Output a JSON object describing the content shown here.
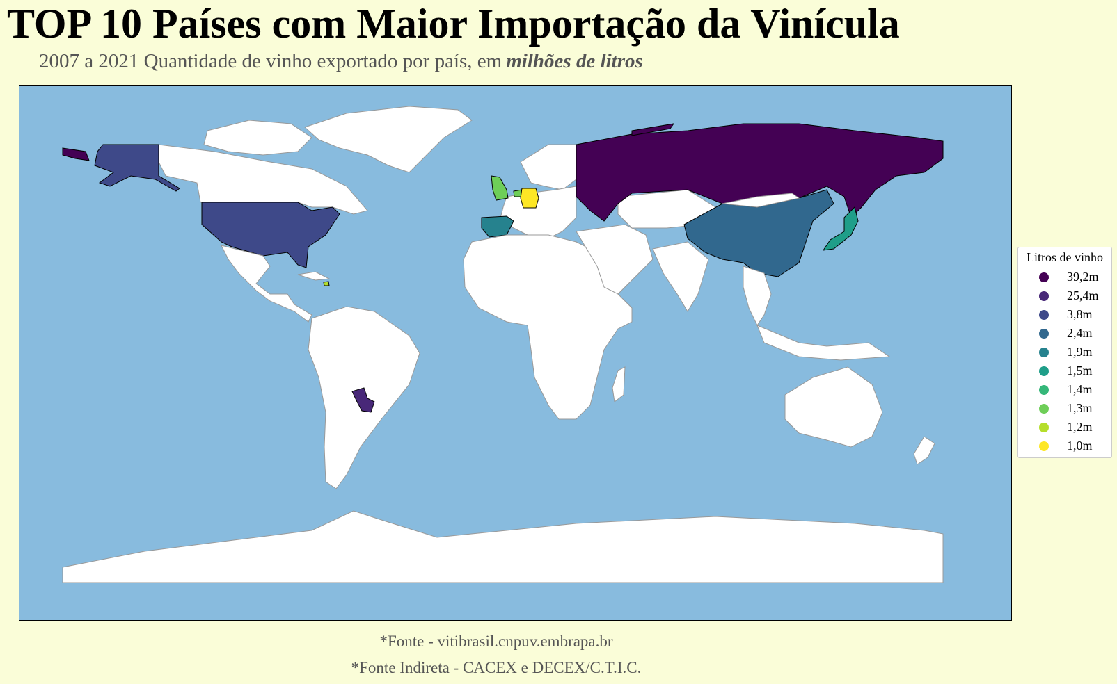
{
  "title": "TOP 10 Países com Maior Importação da Vinícula",
  "subtitle": {
    "text": "2007 a 2021 Quantidade de vinho exportado por país, em",
    "emphasis": "milhões de litros"
  },
  "legend": {
    "title": "Litros de vinho",
    "items": [
      {
        "label": "39,2m",
        "color": "#440154"
      },
      {
        "label": "25,4m",
        "color": "#482878"
      },
      {
        "label": "3,8m",
        "color": "#3e4989"
      },
      {
        "label": "2,4m",
        "color": "#31688e"
      },
      {
        "label": "1,9m",
        "color": "#26828e"
      },
      {
        "label": "1,5m",
        "color": "#1f9e89"
      },
      {
        "label": "1,4m",
        "color": "#35b779"
      },
      {
        "label": "1,3m",
        "color": "#6ece58"
      },
      {
        "label": "1,2m",
        "color": "#b5de2b"
      },
      {
        "label": "1,0m",
        "color": "#fde725"
      }
    ]
  },
  "map": {
    "ocean_color": "#88bbde",
    "land_color": "#ffffff",
    "highlighted": [
      {
        "country": "Rússia",
        "color": "#440154"
      },
      {
        "country": "Paraguai",
        "color": "#482878"
      },
      {
        "country": "Estados Unidos",
        "color": "#3e4989"
      },
      {
        "country": "China",
        "color": "#31688e"
      },
      {
        "country": "Espanha",
        "color": "#26828e"
      },
      {
        "country": "Japão",
        "color": "#1f9e89"
      },
      {
        "country": "Reino Unido",
        "color": "#6ece58"
      },
      {
        "country": "Países Baixos",
        "color": "#6ece58"
      },
      {
        "country": "Haiti",
        "color": "#b5de2b"
      },
      {
        "country": "Alemanha",
        "color": "#fde725"
      }
    ]
  },
  "footer": {
    "source": "*Fonte - vitibrasil.cnpuv.embrapa.br",
    "indirect": "*Fonte Indireta - CACEX e DECEX/C.T.I.C."
  }
}
